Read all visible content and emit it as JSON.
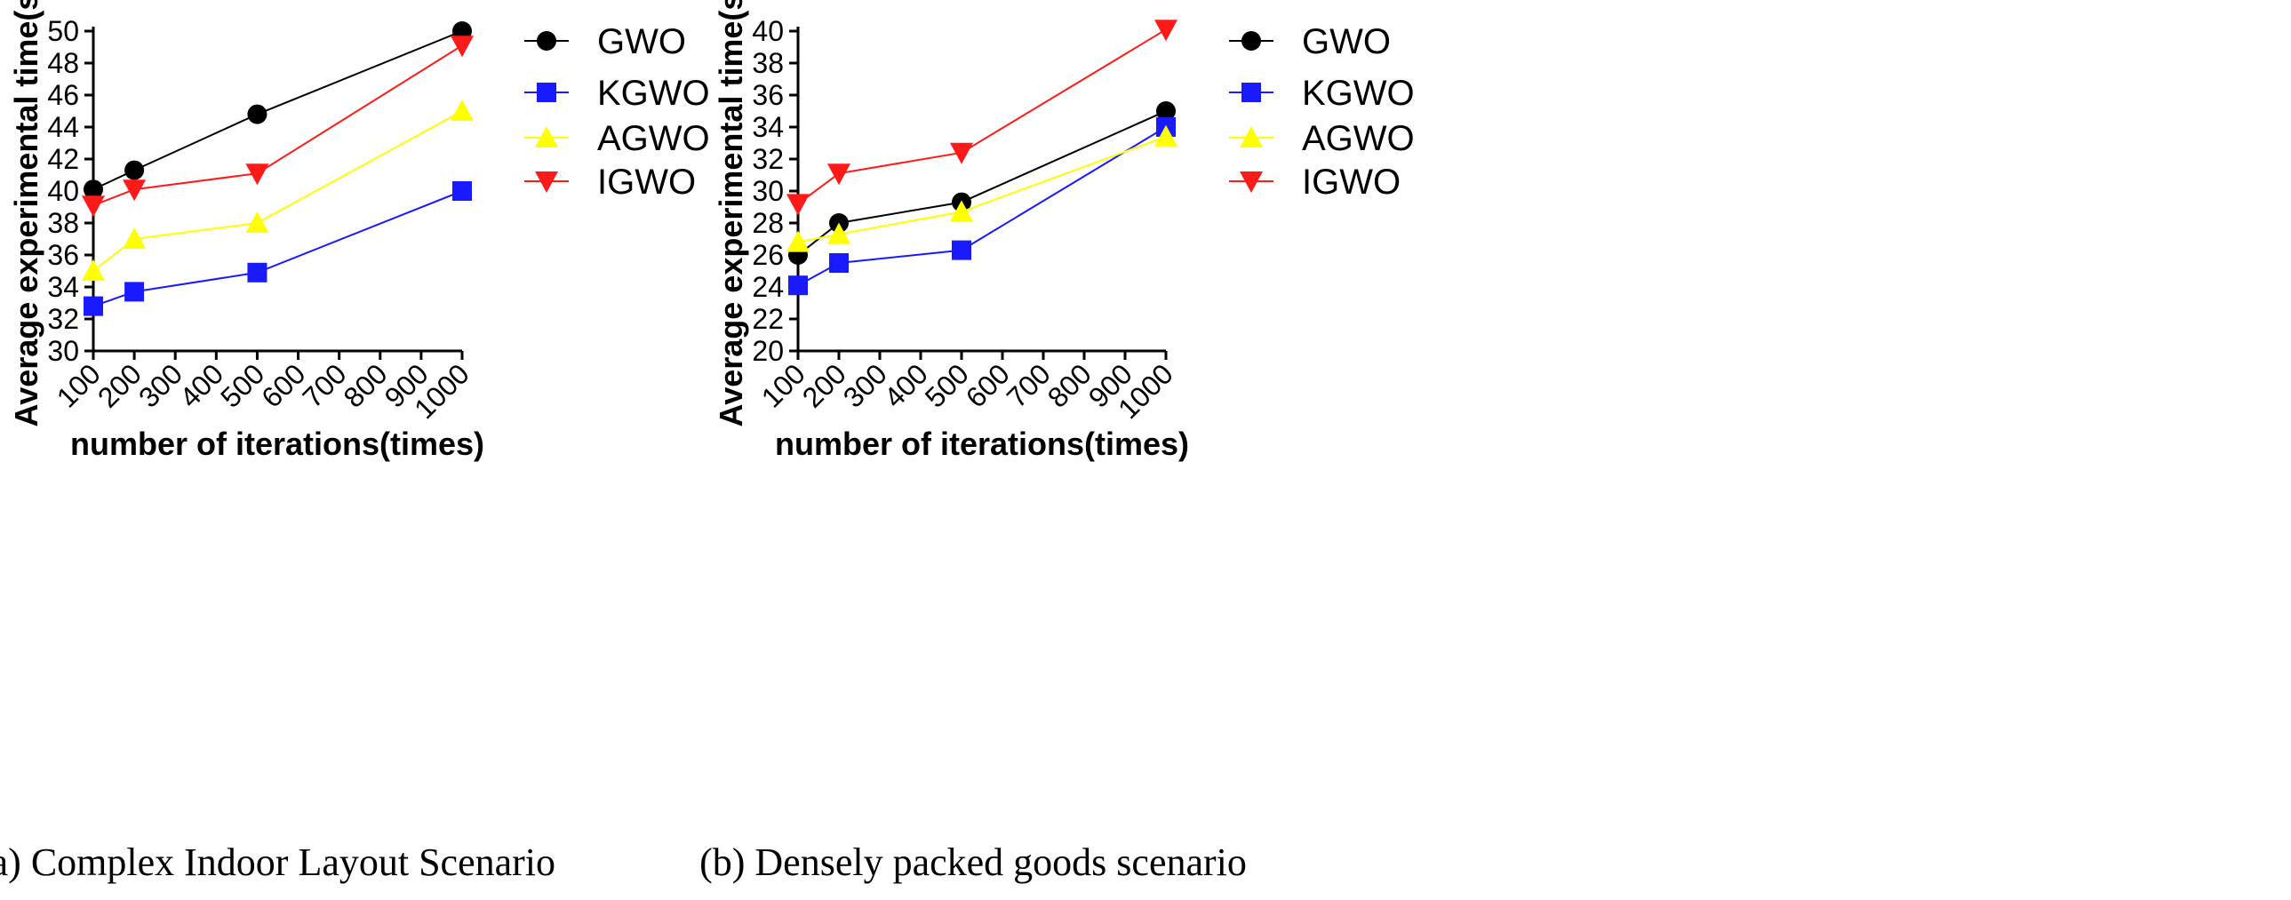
{
  "chart_data": [
    {
      "type": "line",
      "caption": "(a) Complex Indoor Layout Scenario",
      "xlabel": "number of iterations(times)",
      "ylabel": "Average experimental time(s)",
      "xlim": [
        100,
        1000
      ],
      "ylim": [
        30,
        50
      ],
      "x_ticks": [
        100,
        200,
        300,
        400,
        500,
        600,
        700,
        800,
        900,
        1000
      ],
      "y_ticks": [
        30,
        32,
        34,
        36,
        38,
        40,
        42,
        44,
        46,
        48,
        50
      ],
      "x": [
        100,
        200,
        500,
        1000
      ],
      "grid": false,
      "legend_position": "right",
      "series": [
        {
          "name": "GWO",
          "color": "#000000",
          "marker": "circle",
          "values": [
            40.1,
            41.3,
            44.8,
            50.0
          ]
        },
        {
          "name": "KGWO",
          "color": "#1a1aff",
          "marker": "square",
          "values": [
            32.8,
            33.7,
            34.9,
            40.0
          ]
        },
        {
          "name": "AGWO",
          "color": "#ffff00",
          "marker": "triangle-up",
          "values": [
            35.0,
            37.0,
            38.0,
            45.0
          ]
        },
        {
          "name": "IGWO",
          "color": "#ff1a1a",
          "marker": "triangle-down",
          "values": [
            39.1,
            40.1,
            41.1,
            49.1
          ]
        }
      ]
    },
    {
      "type": "line",
      "caption": "(b) Densely packed goods scenario",
      "xlabel": "number of iterations(times)",
      "ylabel": "Average experimental time(s)",
      "xlim": [
        100,
        1000
      ],
      "ylim": [
        20,
        40
      ],
      "x_ticks": [
        100,
        200,
        300,
        400,
        500,
        600,
        700,
        800,
        900,
        1000
      ],
      "y_ticks": [
        20,
        22,
        24,
        26,
        28,
        30,
        32,
        34,
        36,
        38,
        40
      ],
      "x": [
        100,
        200,
        500,
        1000
      ],
      "grid": false,
      "legend_position": "right",
      "series": [
        {
          "name": "GWO",
          "color": "#000000",
          "marker": "circle",
          "values": [
            26.0,
            28.0,
            29.3,
            35.0
          ]
        },
        {
          "name": "KGWO",
          "color": "#1a1aff",
          "marker": "square",
          "values": [
            24.1,
            25.5,
            26.3,
            34.0
          ]
        },
        {
          "name": "AGWO",
          "color": "#ffff00",
          "marker": "triangle-up",
          "values": [
            26.8,
            27.3,
            28.7,
            33.4
          ]
        },
        {
          "name": "IGWO",
          "color": "#ff1a1a",
          "marker": "triangle-down",
          "values": [
            29.2,
            31.1,
            32.4,
            40.1
          ]
        }
      ]
    }
  ]
}
